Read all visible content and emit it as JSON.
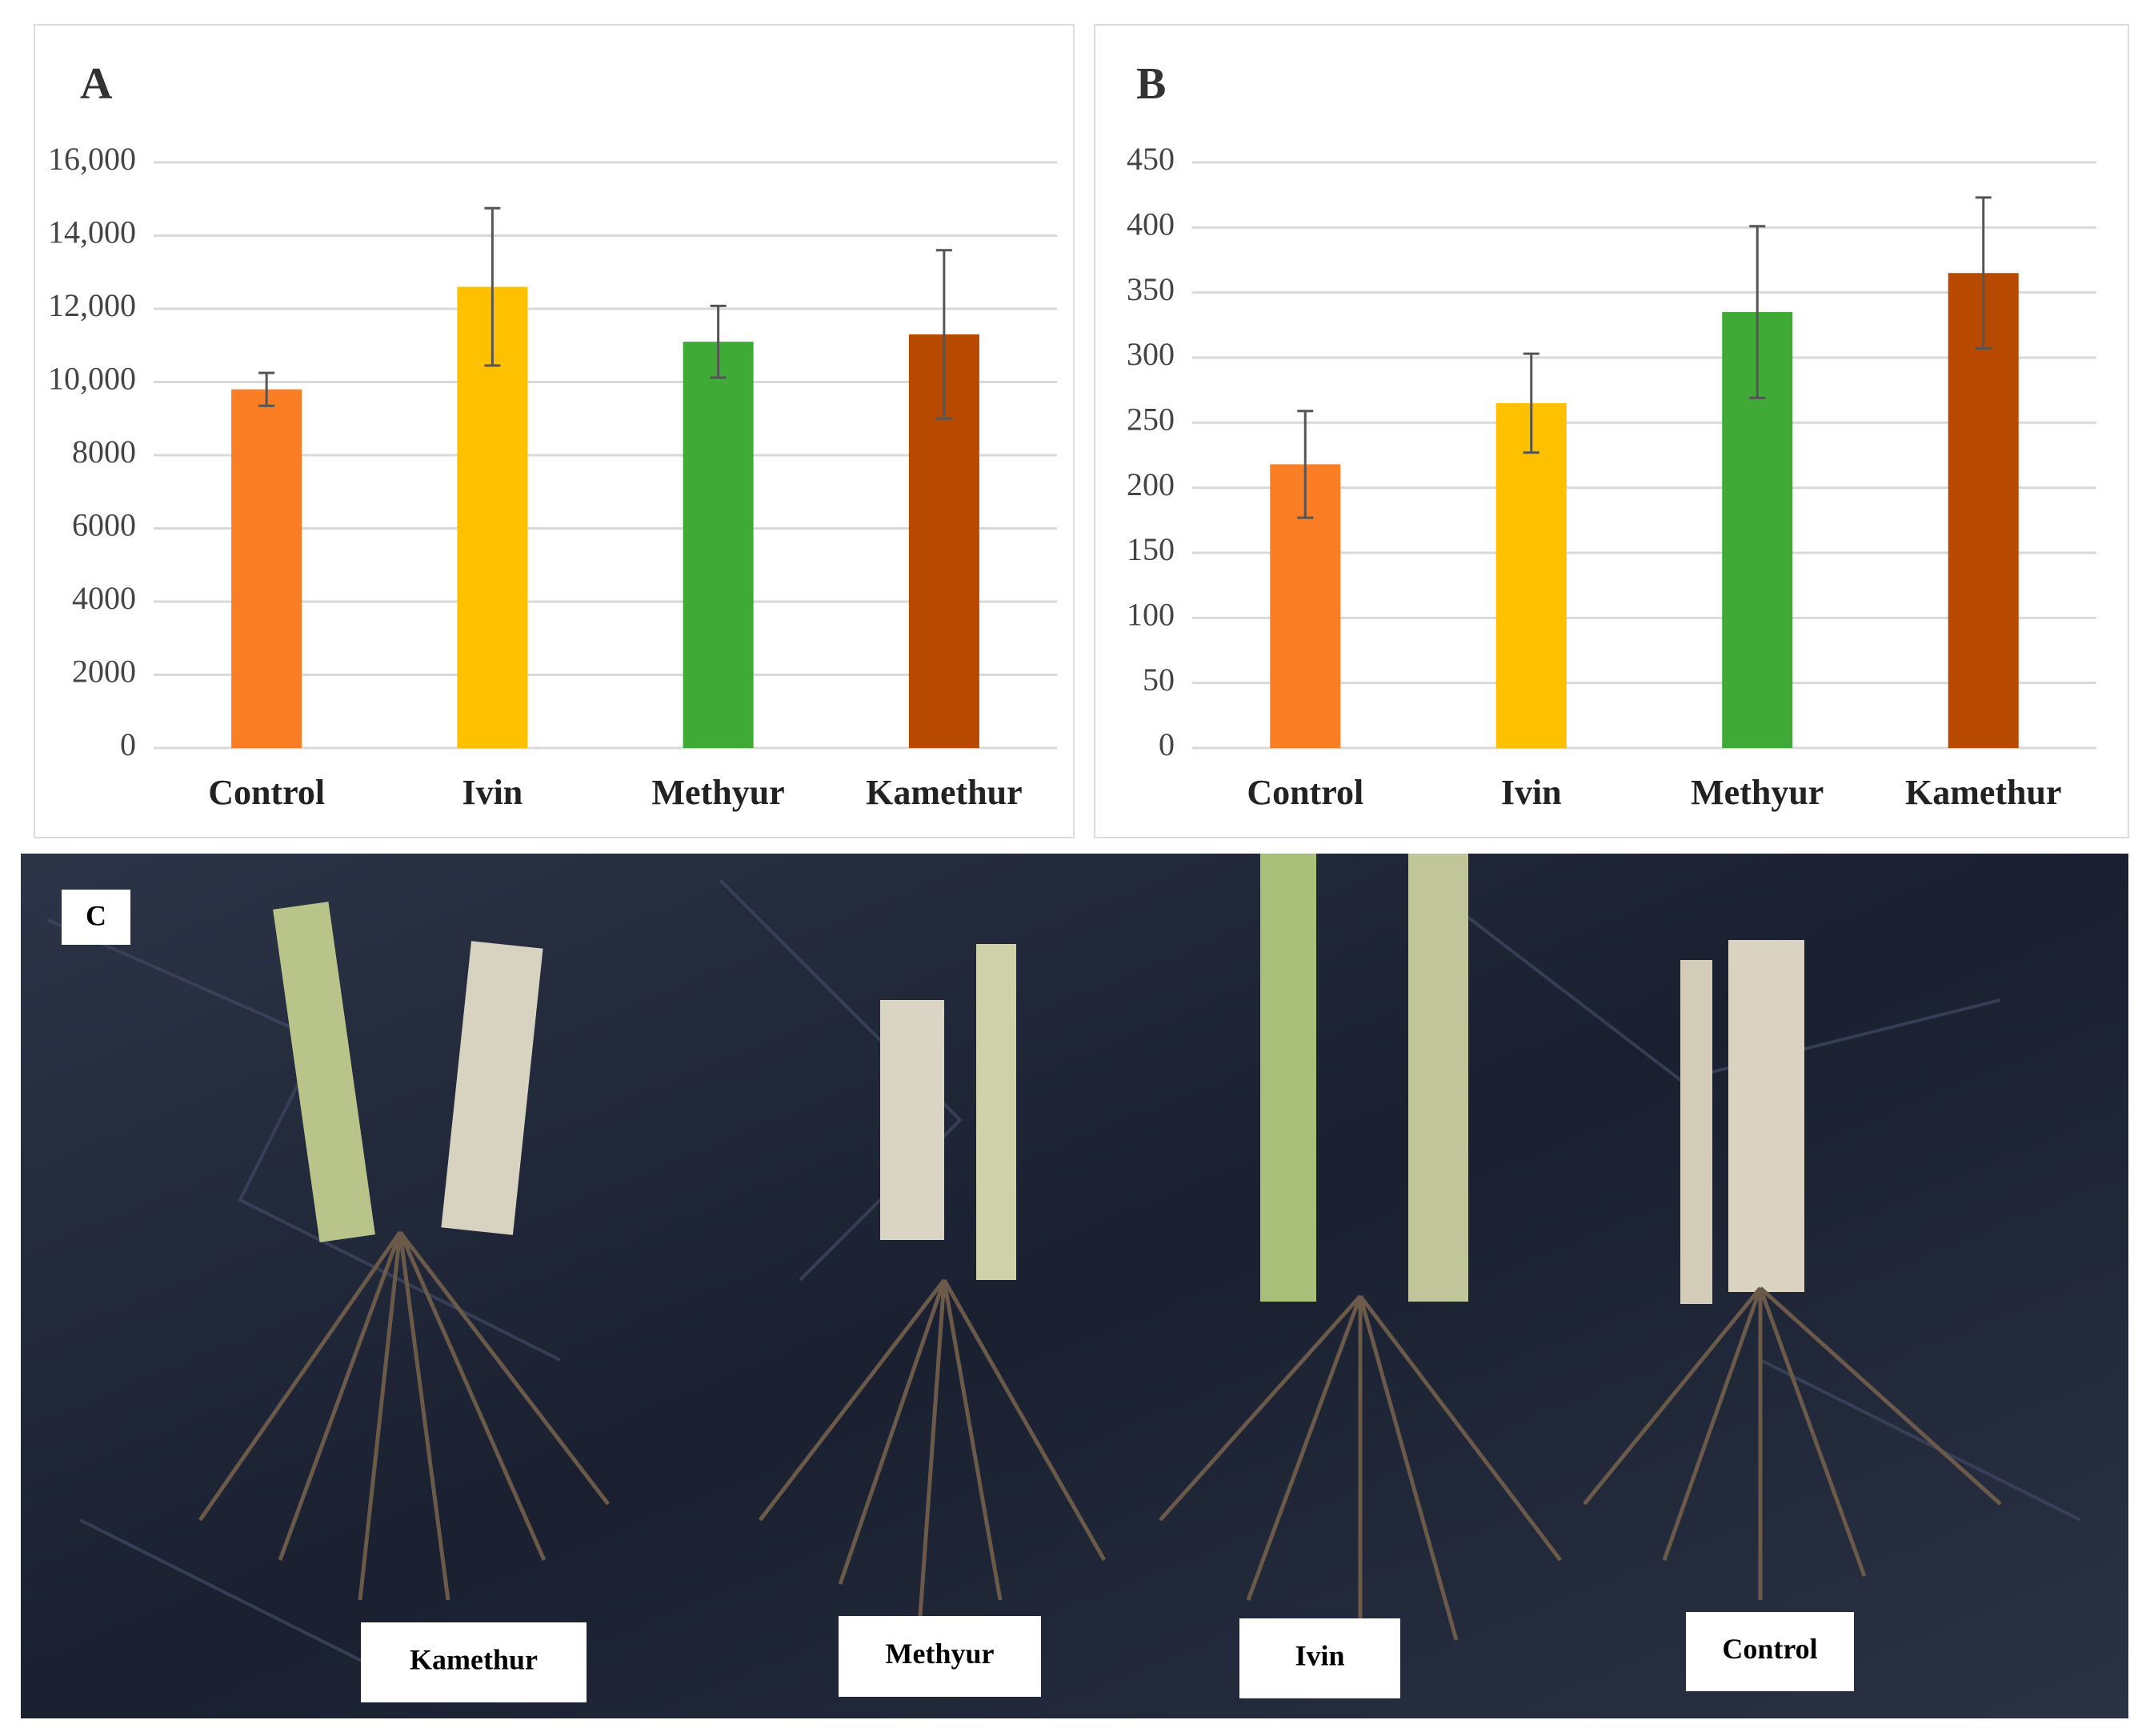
{
  "chart_data": [
    {
      "type": "bar",
      "title": "A",
      "categories": [
        "Control",
        "Ivin",
        "Methyur",
        "Kamethur"
      ],
      "values": [
        9800,
        12600,
        11100,
        11300
      ],
      "errors": [
        450,
        2150,
        980,
        2300
      ],
      "colors": [
        "#fb7d24",
        "#ffc000",
        "#3faa35",
        "#b84a00"
      ],
      "ylim": [
        0,
        16000
      ],
      "yticks": [
        0,
        2000,
        4000,
        6000,
        8000,
        {
          "value": 10000,
          "label": "10,000"
        },
        {
          "value": 12000,
          "label": "12,000"
        },
        {
          "value": 14000,
          "label": "14,000"
        },
        {
          "value": 16000,
          "label": "16,000"
        }
      ],
      "grid": true
    },
    {
      "type": "bar",
      "title": "B",
      "categories": [
        "Control",
        "Ivin",
        "Methyur",
        "Kamethur"
      ],
      "values": [
        218,
        265,
        335,
        365
      ],
      "errors": [
        41,
        38,
        66,
        58
      ],
      "colors": [
        "#fb7d24",
        "#ffc000",
        "#3faa35",
        "#b84a00"
      ],
      "ylim": [
        0,
        450
      ],
      "yticks": [
        0,
        50,
        100,
        150,
        200,
        250,
        300,
        350,
        400,
        450
      ],
      "grid": true
    }
  ],
  "photo": {
    "panel_label": "C",
    "labels": [
      "Kamethur",
      "Methyur",
      "Ivin",
      "Control"
    ]
  }
}
